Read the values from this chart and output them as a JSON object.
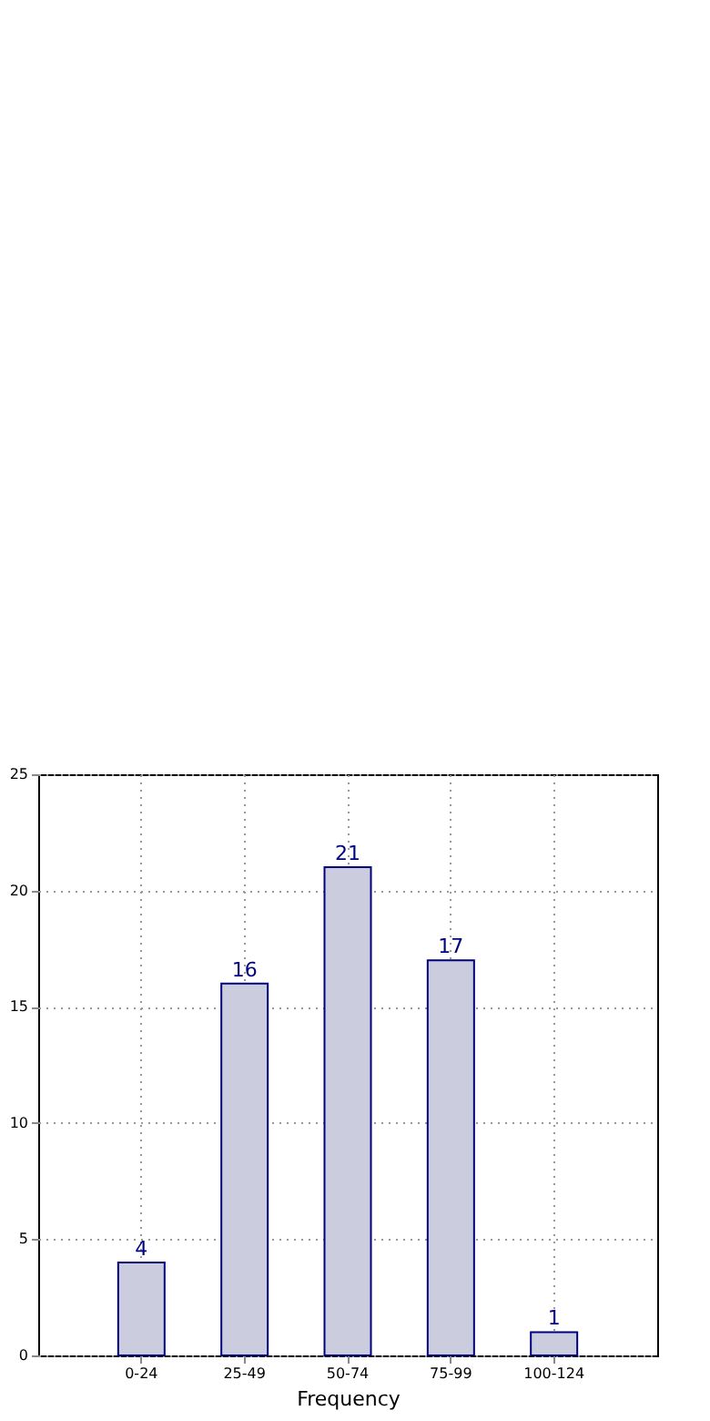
{
  "chart_data": {
    "type": "bar",
    "xlabel": "Frequency",
    "categories": [
      "0-24",
      "25-49",
      "50-74",
      "75-99",
      "100-124"
    ],
    "values": [
      4,
      16,
      21,
      17,
      1
    ],
    "color": "#ccccdf",
    "ylim": [
      0,
      25
    ],
    "yticks": [
      0,
      5,
      10,
      15,
      20,
      25
    ],
    "grid": true,
    "data_labels": true
  }
}
